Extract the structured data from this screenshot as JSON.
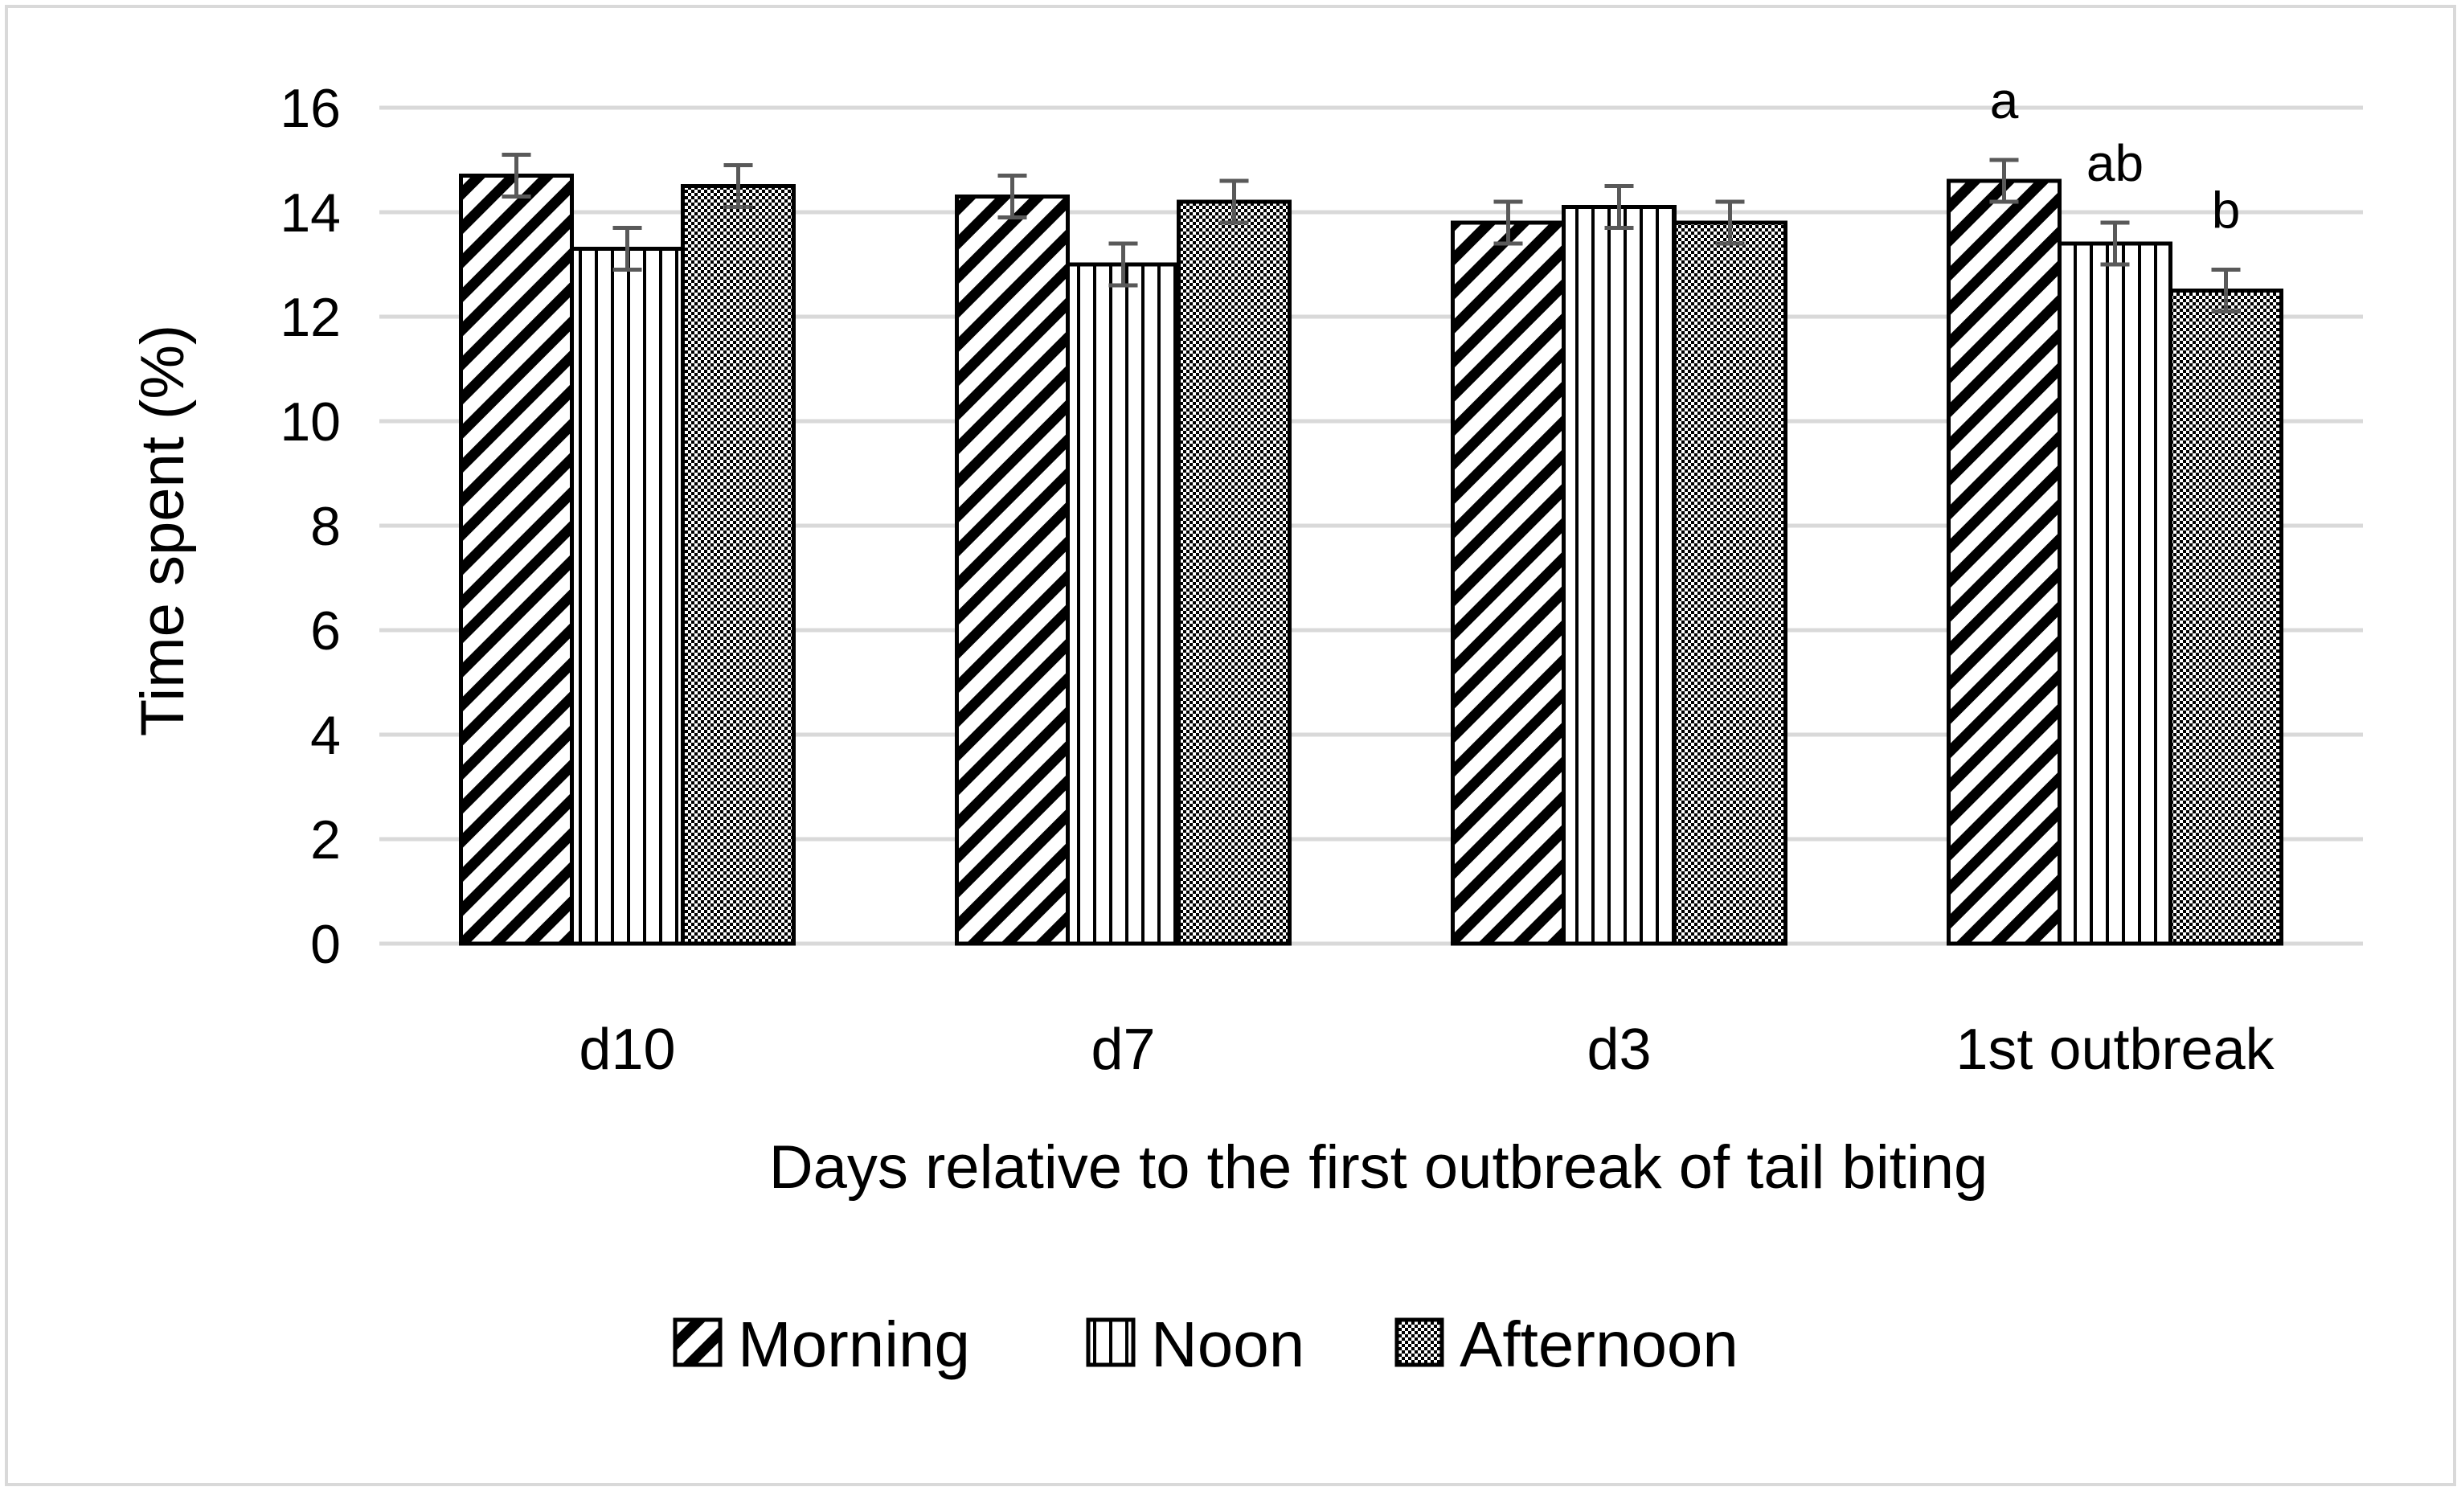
{
  "chart_data": {
    "type": "bar",
    "title": "",
    "xlabel": "Days relative to the first outbreak of tail biting",
    "ylabel": "Time spent (%)",
    "ylim": [
      0,
      16
    ],
    "yticks": [
      0,
      2,
      4,
      6,
      8,
      10,
      12,
      14,
      16
    ],
    "grid": true,
    "legend_position": "bottom",
    "categories": [
      "d10",
      "d7",
      "d3",
      "1st outbreak"
    ],
    "series": [
      {
        "name": "Morning",
        "pattern": "diagonal-hatch",
        "values": [
          14.7,
          14.3,
          13.8,
          14.6
        ],
        "errors": [
          0.4,
          0.4,
          0.4,
          0.4
        ]
      },
      {
        "name": "Noon",
        "pattern": "vertical-lines",
        "values": [
          13.3,
          13.0,
          14.1,
          13.4
        ],
        "errors": [
          0.4,
          0.4,
          0.4,
          0.4
        ]
      },
      {
        "name": "Afternoon",
        "pattern": "dense-dots",
        "values": [
          14.5,
          14.2,
          13.8,
          12.5
        ],
        "errors": [
          0.4,
          0.4,
          0.4,
          0.4
        ]
      }
    ],
    "annotations": [
      {
        "category": "1st outbreak",
        "series": "Morning",
        "text": "a"
      },
      {
        "category": "1st outbreak",
        "series": "Noon",
        "text": "ab"
      },
      {
        "category": "1st outbreak",
        "series": "Afternoon",
        "text": "b"
      }
    ],
    "colors": {
      "bar_stroke": "#000000",
      "grid": "#d9d9d9",
      "error_bar": "#595959",
      "frame": "#d9d9d9"
    }
  }
}
